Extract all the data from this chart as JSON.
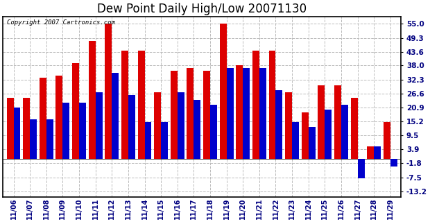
{
  "title": "Dew Point Daily High/Low 20071130",
  "copyright": "Copyright 2007 Cartronics.com",
  "dates": [
    "11/06",
    "11/07",
    "11/08",
    "11/09",
    "11/10",
    "11/11",
    "11/12",
    "11/13",
    "11/14",
    "11/15",
    "11/16",
    "11/17",
    "11/18",
    "11/19",
    "11/20",
    "11/21",
    "11/22",
    "11/23",
    "11/24",
    "11/25",
    "11/26",
    "11/27",
    "11/28",
    "11/29"
  ],
  "highs": [
    25.0,
    25.0,
    33.0,
    34.0,
    39.0,
    48.0,
    55.0,
    44.0,
    44.0,
    27.0,
    36.0,
    37.0,
    36.0,
    55.0,
    38.0,
    44.0,
    44.0,
    27.0,
    19.0,
    30.0,
    30.0,
    25.0,
    5.0,
    15.0
  ],
  "lows": [
    21.0,
    16.0,
    16.0,
    23.0,
    23.0,
    27.0,
    35.0,
    26.0,
    15.0,
    15.0,
    27.0,
    24.0,
    22.0,
    37.0,
    37.0,
    37.0,
    28.0,
    15.0,
    13.0,
    20.0,
    22.0,
    -8.0,
    5.0,
    -3.0
  ],
  "high_color": "#dd0000",
  "low_color": "#0000cc",
  "bg_color": "#ffffff",
  "plot_bg": "#ffffff",
  "yticks": [
    55.0,
    49.3,
    43.6,
    38.0,
    32.3,
    26.6,
    20.9,
    15.2,
    9.5,
    3.9,
    -1.8,
    -7.5,
    -13.2
  ],
  "ylim": [
    -15.5,
    58.0
  ],
  "grid_color": "#bbbbbb",
  "title_fontsize": 12,
  "bar_width": 0.42
}
